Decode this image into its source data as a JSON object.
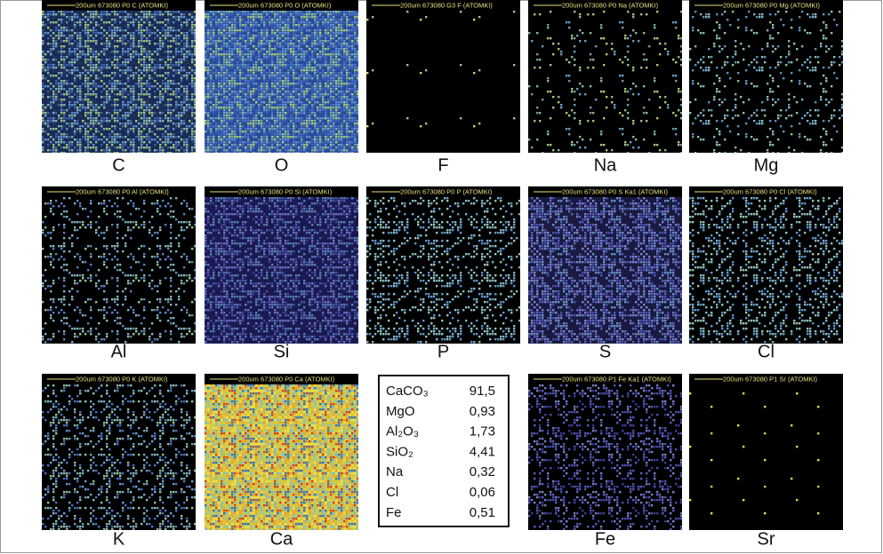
{
  "panels": [
    {
      "header": "200um 673080 P0 C (ATOMKI)",
      "label": "C"
    },
    {
      "header": "200um 673080 P0 O (ATOMKI)",
      "label": "O"
    },
    {
      "header": "200um 673080 G3 F (ATOMKI)",
      "label": "F"
    },
    {
      "header": "200um 673080 P0 Na (ATOMKI)",
      "label": "Na"
    },
    {
      "header": "200um 673080 P0 Mg (ATOMKI)",
      "label": "Mg"
    },
    {
      "header": "200um 673080 P0 Al (ATOMKI)",
      "label": "Al"
    },
    {
      "header": "200um 673080 P0 Si (ATOMKI)",
      "label": "Si"
    },
    {
      "header": "200um 673080 P0 P (ATOMKI)",
      "label": "P"
    },
    {
      "header": "200um 673080 P0 S Ka1 (ATOMKI)",
      "label": "S"
    },
    {
      "header": "200um 673080 P0 Cl (ATOMKI)",
      "label": "Cl"
    },
    {
      "header": "200um 673080 P0 K (ATOMKI)",
      "label": "K"
    },
    {
      "header": "200um 673080 P0 Ca (ATOMKI)",
      "label": "Ca"
    },
    {
      "header": "200um 673080 P1 Fe Ka1 (ATOMKI)",
      "label": "Fe"
    },
    {
      "header": "200um 673080 P1 Sr (ATOMKI)",
      "label": "Sr"
    }
  ],
  "table": {
    "rows": [
      [
        "CaCO₃",
        "91,5"
      ],
      [
        "MgO",
        "0,93"
      ],
      [
        "Al₂O₃",
        "1,73"
      ],
      [
        "SiO₂",
        "4,41"
      ],
      [
        "Na",
        "0,32"
      ],
      [
        "Cl",
        "0,06"
      ],
      [
        "Fe",
        "0,51"
      ]
    ]
  }
}
